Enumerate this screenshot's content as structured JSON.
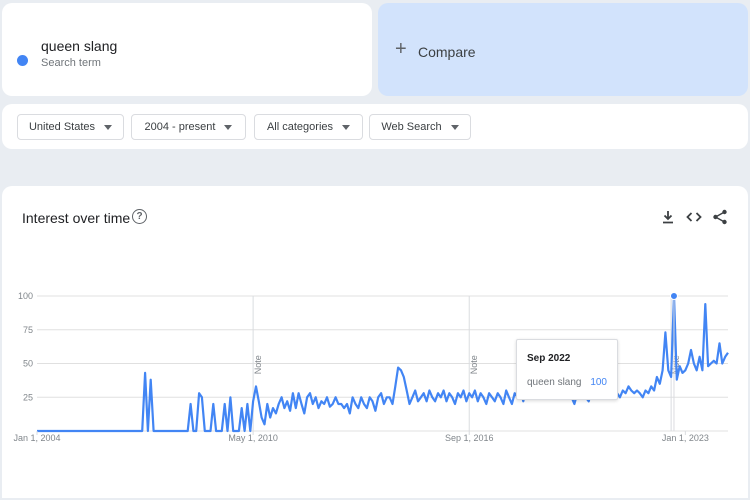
{
  "search_term": {
    "name": "queen slang",
    "subtitle": "Search term",
    "color": "#4285f4"
  },
  "compare": {
    "icon": "plus-icon",
    "label": "Compare"
  },
  "filters": {
    "region": "United States",
    "time_range": "2004 - present",
    "category": "All categories",
    "search_type": "Web Search"
  },
  "chart_panel": {
    "title": "Interest over time",
    "help_icon": "help-circle-icon",
    "tools": [
      "download-icon",
      "embed-code-icon",
      "share-icon"
    ]
  },
  "tooltip": {
    "date": "Sep 2022",
    "term": "queen slang",
    "value": "100"
  },
  "chart_data": {
    "type": "line",
    "title": "Interest over time",
    "xlabel": "",
    "ylabel": "",
    "ylim": [
      0,
      100
    ],
    "yticks": [
      25,
      50,
      75,
      100
    ],
    "xtick_labels": [
      "Jan 1, 2004",
      "May 1, 2010",
      "Sep 1, 2016",
      "Jan 1, 2023"
    ],
    "xtick_dates": [
      "2004-01",
      "2010-05",
      "2016-09",
      "2023-01"
    ],
    "x_range": [
      "2004-01",
      "2024-04"
    ],
    "notes": [
      {
        "date": "2010-05",
        "label": "Note"
      },
      {
        "date": "2016-09",
        "label": "Note"
      },
      {
        "date": "2022-08",
        "label": "Note"
      }
    ],
    "highlight": {
      "date": "2022-09",
      "value": 100
    },
    "grid": true,
    "legend": "none",
    "series": [
      {
        "name": "queen slang",
        "color": "#4285f4",
        "points": [
          [
            "2004-01",
            0
          ],
          [
            "2007-02",
            0
          ],
          [
            "2007-03",
            43
          ],
          [
            "2007-04",
            0
          ],
          [
            "2007-05",
            38
          ],
          [
            "2007-06",
            0
          ],
          [
            "2008-06",
            0
          ],
          [
            "2008-07",
            20
          ],
          [
            "2008-08",
            0
          ],
          [
            "2008-09",
            0
          ],
          [
            "2008-10",
            28
          ],
          [
            "2008-11",
            25
          ],
          [
            "2008-12",
            0
          ],
          [
            "2009-02",
            0
          ],
          [
            "2009-03",
            20
          ],
          [
            "2009-04",
            0
          ],
          [
            "2009-05",
            0
          ],
          [
            "2009-06",
            0
          ],
          [
            "2009-07",
            20
          ],
          [
            "2009-08",
            0
          ],
          [
            "2009-09",
            25
          ],
          [
            "2009-10",
            0
          ],
          [
            "2009-11",
            0
          ],
          [
            "2009-12",
            0
          ],
          [
            "2010-01",
            17
          ],
          [
            "2010-02",
            0
          ],
          [
            "2010-03",
            20
          ],
          [
            "2010-04",
            0
          ],
          [
            "2010-05",
            22
          ],
          [
            "2010-06",
            33
          ],
          [
            "2010-07",
            22
          ],
          [
            "2010-08",
            10
          ],
          [
            "2010-09",
            5
          ],
          [
            "2010-10",
            20
          ],
          [
            "2010-11",
            10
          ],
          [
            "2010-12",
            17
          ],
          [
            "2011-01",
            13
          ],
          [
            "2011-02",
            20
          ],
          [
            "2011-03",
            25
          ],
          [
            "2011-04",
            17
          ],
          [
            "2011-05",
            22
          ],
          [
            "2011-06",
            15
          ],
          [
            "2011-07",
            28
          ],
          [
            "2011-08",
            17
          ],
          [
            "2011-09",
            28
          ],
          [
            "2011-10",
            20
          ],
          [
            "2011-11",
            13
          ],
          [
            "2011-12",
            25
          ],
          [
            "2012-01",
            28
          ],
          [
            "2012-02",
            20
          ],
          [
            "2012-03",
            25
          ],
          [
            "2012-04",
            17
          ],
          [
            "2012-05",
            22
          ],
          [
            "2012-06",
            20
          ],
          [
            "2012-07",
            25
          ],
          [
            "2012-08",
            18
          ],
          [
            "2012-09",
            20
          ],
          [
            "2012-10",
            25
          ],
          [
            "2012-11",
            20
          ],
          [
            "2012-12",
            20
          ],
          [
            "2013-01",
            17
          ],
          [
            "2013-02",
            20
          ],
          [
            "2013-03",
            13
          ],
          [
            "2013-04",
            25
          ],
          [
            "2013-05",
            20
          ],
          [
            "2013-06",
            17
          ],
          [
            "2013-07",
            25
          ],
          [
            "2013-08",
            20
          ],
          [
            "2013-09",
            17
          ],
          [
            "2013-10",
            25
          ],
          [
            "2013-11",
            22
          ],
          [
            "2013-12",
            15
          ],
          [
            "2014-01",
            25
          ],
          [
            "2014-02",
            28
          ],
          [
            "2014-03",
            20
          ],
          [
            "2014-04",
            25
          ],
          [
            "2014-05",
            25
          ],
          [
            "2014-06",
            20
          ],
          [
            "2014-07",
            33
          ],
          [
            "2014-08",
            47
          ],
          [
            "2014-09",
            45
          ],
          [
            "2014-10",
            40
          ],
          [
            "2014-11",
            30
          ],
          [
            "2014-12",
            20
          ],
          [
            "2015-01",
            25
          ],
          [
            "2015-02",
            30
          ],
          [
            "2015-03",
            22
          ],
          [
            "2015-04",
            25
          ],
          [
            "2015-05",
            28
          ],
          [
            "2015-06",
            22
          ],
          [
            "2015-07",
            30
          ],
          [
            "2015-08",
            25
          ],
          [
            "2015-09",
            22
          ],
          [
            "2015-10",
            28
          ],
          [
            "2015-11",
            25
          ],
          [
            "2015-12",
            30
          ],
          [
            "2016-01",
            22
          ],
          [
            "2016-02",
            28
          ],
          [
            "2016-03",
            25
          ],
          [
            "2016-04",
            20
          ],
          [
            "2016-05",
            28
          ],
          [
            "2016-06",
            25
          ],
          [
            "2016-07",
            30
          ],
          [
            "2016-08",
            22
          ],
          [
            "2016-09",
            28
          ],
          [
            "2016-10",
            25
          ],
          [
            "2016-11",
            30
          ],
          [
            "2016-12",
            22
          ],
          [
            "2017-01",
            28
          ],
          [
            "2017-02",
            25
          ],
          [
            "2017-03",
            20
          ],
          [
            "2017-04",
            28
          ],
          [
            "2017-05",
            25
          ],
          [
            "2017-06",
            22
          ],
          [
            "2017-07",
            28
          ],
          [
            "2017-08",
            25
          ],
          [
            "2017-09",
            20
          ],
          [
            "2017-10",
            30
          ],
          [
            "2017-11",
            25
          ],
          [
            "2017-12",
            20
          ],
          [
            "2018-01",
            28
          ],
          [
            "2018-02",
            25
          ],
          [
            "2018-03",
            30
          ],
          [
            "2018-04",
            22
          ],
          [
            "2018-05",
            33
          ],
          [
            "2018-06",
            25
          ],
          [
            "2018-07",
            30
          ],
          [
            "2018-08",
            25
          ],
          [
            "2018-09",
            35
          ],
          [
            "2018-10",
            28
          ],
          [
            "2018-11",
            30
          ],
          [
            "2018-12",
            25
          ],
          [
            "2019-01",
            30
          ],
          [
            "2019-02",
            25
          ],
          [
            "2019-03",
            33
          ],
          [
            "2019-04",
            28
          ],
          [
            "2019-05",
            30
          ],
          [
            "2019-06",
            25
          ],
          [
            "2019-07",
            28
          ],
          [
            "2019-08",
            30
          ],
          [
            "2019-09",
            25
          ],
          [
            "2019-10",
            20
          ],
          [
            "2019-11",
            28
          ],
          [
            "2019-12",
            25
          ],
          [
            "2020-01",
            33
          ],
          [
            "2020-02",
            25
          ],
          [
            "2020-03",
            22
          ],
          [
            "2020-04",
            30
          ],
          [
            "2020-05",
            28
          ],
          [
            "2020-06",
            25
          ],
          [
            "2020-07",
            30
          ],
          [
            "2020-08",
            25
          ],
          [
            "2020-09",
            30
          ],
          [
            "2020-10",
            28
          ],
          [
            "2020-11",
            25
          ],
          [
            "2020-12",
            30
          ],
          [
            "2021-01",
            28
          ],
          [
            "2021-02",
            25
          ],
          [
            "2021-03",
            30
          ],
          [
            "2021-04",
            28
          ],
          [
            "2021-05",
            33
          ],
          [
            "2021-06",
            30
          ],
          [
            "2021-07",
            28
          ],
          [
            "2021-08",
            30
          ],
          [
            "2021-09",
            28
          ],
          [
            "2021-10",
            25
          ],
          [
            "2021-11",
            30
          ],
          [
            "2021-12",
            28
          ],
          [
            "2022-01",
            33
          ],
          [
            "2022-02",
            30
          ],
          [
            "2022-03",
            40
          ],
          [
            "2022-04",
            35
          ],
          [
            "2022-05",
            45
          ],
          [
            "2022-06",
            73
          ],
          [
            "2022-07",
            45
          ],
          [
            "2022-08",
            40
          ],
          [
            "2022-09",
            100
          ],
          [
            "2022-10",
            38
          ],
          [
            "2022-11",
            48
          ],
          [
            "2022-12",
            43
          ],
          [
            "2023-01",
            45
          ],
          [
            "2023-02",
            50
          ],
          [
            "2023-03",
            60
          ],
          [
            "2023-04",
            50
          ],
          [
            "2023-05",
            45
          ],
          [
            "2023-06",
            55
          ],
          [
            "2023-07",
            45
          ],
          [
            "2023-08",
            94
          ],
          [
            "2023-09",
            48
          ],
          [
            "2023-10",
            50
          ],
          [
            "2023-11",
            52
          ],
          [
            "2023-12",
            50
          ],
          [
            "2024-01",
            65
          ],
          [
            "2024-02",
            50
          ],
          [
            "2024-03",
            55
          ],
          [
            "2024-04",
            58
          ]
        ]
      }
    ]
  }
}
